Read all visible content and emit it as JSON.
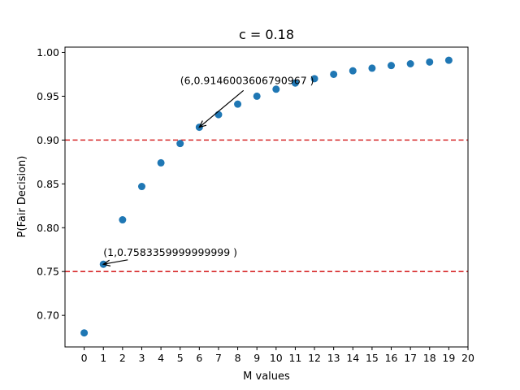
{
  "chart_data": {
    "type": "scatter",
    "title": "c = 0.18",
    "xlabel": "M values",
    "ylabel": "P(Fair Decision)",
    "xlim": [
      -1,
      20
    ],
    "ylim": [
      0.664,
      1.006
    ],
    "xticks": [
      0,
      1,
      2,
      3,
      4,
      5,
      6,
      7,
      8,
      9,
      10,
      11,
      12,
      13,
      14,
      15,
      16,
      17,
      18,
      19,
      20
    ],
    "yticks": [
      0.7,
      0.75,
      0.8,
      0.85,
      0.9,
      0.95,
      1.0
    ],
    "ytick_labels": [
      "0.70",
      "0.75",
      "0.80",
      "0.85",
      "0.90",
      "0.95",
      "1.00"
    ],
    "grid": false,
    "points": {
      "x": [
        0,
        1,
        2,
        3,
        4,
        5,
        6,
        7,
        8,
        9,
        10,
        11,
        12,
        13,
        14,
        15,
        16,
        17,
        18,
        19
      ],
      "y": [
        0.68,
        0.7583359999999999,
        0.809,
        0.847,
        0.874,
        0.896,
        0.9146003606790967,
        0.929,
        0.941,
        0.95,
        0.958,
        0.965,
        0.97,
        0.975,
        0.979,
        0.982,
        0.985,
        0.987,
        0.989,
        0.991
      ],
      "color": "#1f77b4"
    },
    "hlines": [
      {
        "y": 0.9,
        "color": "#d62728",
        "style": "dashed"
      },
      {
        "y": 0.75,
        "color": "#d62728",
        "style": "dashed"
      }
    ],
    "annotations": [
      {
        "text": "(1,0.7583359999999999 )",
        "point": [
          1,
          0.7583359999999999
        ],
        "text_pos": [
          1,
          0.768
        ]
      },
      {
        "text": "(6,0.9146003606790967 )",
        "point": [
          6,
          0.9146003606790967
        ],
        "text_pos": [
          5,
          0.964
        ]
      }
    ]
  }
}
